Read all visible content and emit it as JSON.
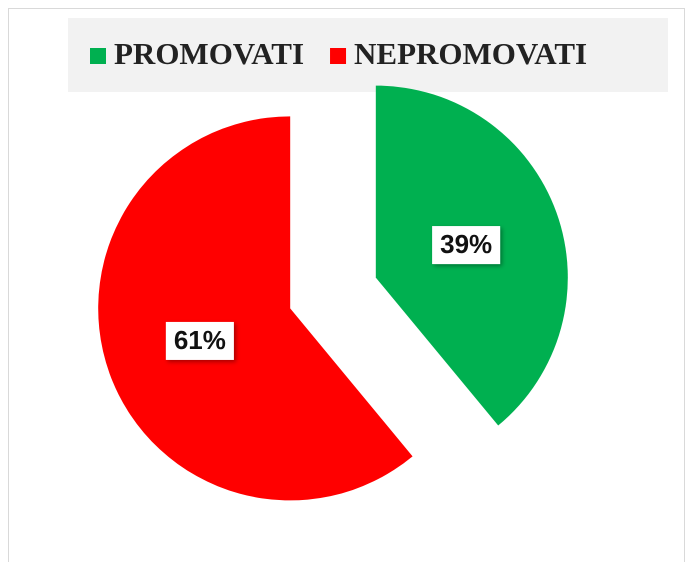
{
  "chart_data": {
    "type": "pie",
    "categories": [
      "PROMOVATI",
      "NEPROMOVATI"
    ],
    "values": [
      39,
      61
    ],
    "value_labels": [
      "39%",
      "61%"
    ],
    "colors": [
      "#00b050",
      "#ff0000"
    ],
    "legend": "top"
  }
}
